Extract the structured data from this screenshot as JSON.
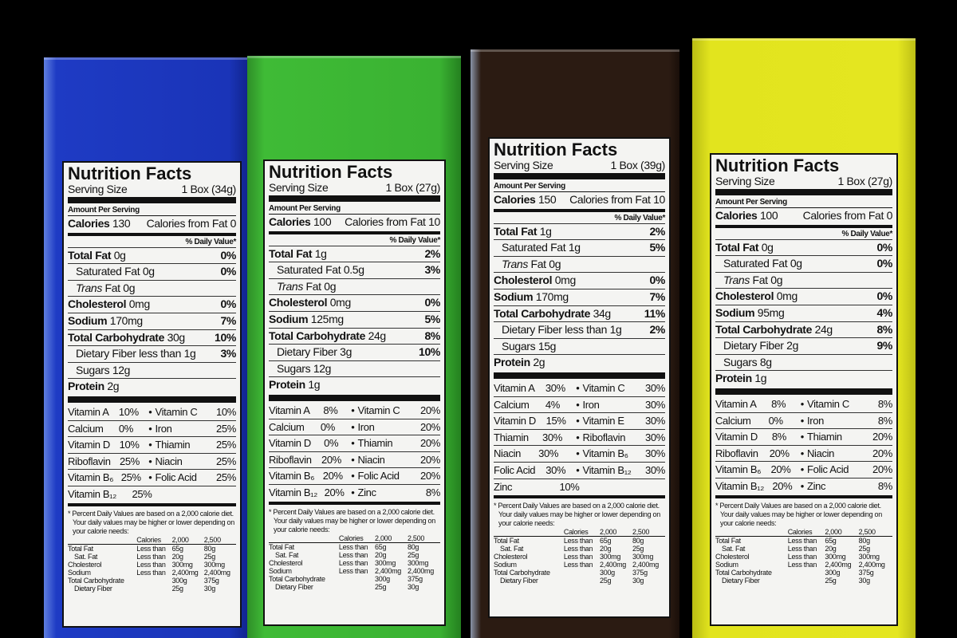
{
  "colors": {
    "background": "#000000",
    "box1": "#1f3cc4",
    "box2": "#3cb534",
    "box3": "#2b1b12",
    "box4": "#e2e41e"
  },
  "common": {
    "title": "Nutrition Facts",
    "serving_label": "Serving Size",
    "amount_per_serving": "Amount Per Serving",
    "calories_label": "Calories",
    "cff_label": "Calories from Fat",
    "dv_header": "% Daily Value*",
    "footnote1": "* Percent Daily Values are based on a 2,000 calorie diet.",
    "footnote2": "Your daily values may be higher or lower depending on",
    "footnote3": "your calorie needs:",
    "table": {
      "header": [
        "",
        "Calories",
        "2,000",
        "2,500"
      ],
      "rows": [
        [
          "Total Fat",
          "Less than",
          "65g",
          "80g"
        ],
        [
          "Sat. Fat",
          "Less than",
          "20g",
          "25g"
        ],
        [
          "Cholesterol",
          "Less than",
          "300mg",
          "300mg"
        ],
        [
          "Sodium",
          "Less than",
          "2,400mg",
          "2,400mg"
        ],
        [
          "Total Carbohydrate",
          "",
          "300g",
          "375g"
        ],
        [
          "Dietary Fiber",
          "",
          "25g",
          "30g"
        ]
      ]
    }
  },
  "labels": [
    {
      "serving": "1 Box (34g)",
      "calories": "130",
      "cff": "0",
      "nutrients": [
        {
          "name": "Total Fat",
          "amount": "0g",
          "dv": "0%",
          "bold": true
        },
        {
          "name": "Saturated Fat",
          "amount": "0g",
          "dv": "0%",
          "indent": true
        },
        {
          "name": "Trans",
          "amount": "Fat 0g",
          "dv": "",
          "indent": true,
          "italic": true
        },
        {
          "name": "Cholesterol",
          "amount": "0mg",
          "dv": "0%",
          "bold": true
        },
        {
          "name": "Sodium",
          "amount": "170mg",
          "dv": "7%",
          "bold": true
        },
        {
          "name": "Total Carbohydrate",
          "amount": "30g",
          "dv": "10%",
          "bold": true
        },
        {
          "name": "Dietary Fiber",
          "amount": "less than 1g",
          "dv": "3%",
          "indent": true
        },
        {
          "name": "Sugars",
          "amount": "12g",
          "dv": "",
          "indent": true
        },
        {
          "name": "Protein",
          "amount": "2g",
          "dv": "",
          "bold": true
        }
      ],
      "vitamins": [
        [
          "Vitamin A",
          "10%",
          "Vitamin C",
          "10%"
        ],
        [
          "Calcium",
          "0%",
          "Iron",
          "25%"
        ],
        [
          "Vitamin D",
          "10%",
          "Thiamin",
          "25%"
        ],
        [
          "Riboflavin",
          "25%",
          "Niacin",
          "25%"
        ],
        [
          "Vitamin B₆",
          "25%",
          "Folic Acid",
          "25%"
        ],
        [
          "Vitamin B₁₂",
          "25%",
          "",
          ""
        ]
      ]
    },
    {
      "serving": "1 Box (27g)",
      "calories": "100",
      "cff": "10",
      "nutrients": [
        {
          "name": "Total Fat",
          "amount": "1g",
          "dv": "2%",
          "bold": true
        },
        {
          "name": "Saturated Fat",
          "amount": "0.5g",
          "dv": "3%",
          "indent": true
        },
        {
          "name": "Trans",
          "amount": "Fat 0g",
          "dv": "",
          "indent": true,
          "italic": true
        },
        {
          "name": "Cholesterol",
          "amount": "0mg",
          "dv": "0%",
          "bold": true
        },
        {
          "name": "Sodium",
          "amount": "125mg",
          "dv": "5%",
          "bold": true
        },
        {
          "name": "Total Carbohydrate",
          "amount": "24g",
          "dv": "8%",
          "bold": true
        },
        {
          "name": "Dietary Fiber",
          "amount": "3g",
          "dv": "10%",
          "indent": true
        },
        {
          "name": "Sugars",
          "amount": "12g",
          "dv": "",
          "indent": true
        },
        {
          "name": "Protein",
          "amount": "1g",
          "dv": "",
          "bold": true
        }
      ],
      "vitamins": [
        [
          "Vitamin A",
          "8%",
          "Vitamin C",
          "20%"
        ],
        [
          "Calcium",
          "0%",
          "Iron",
          "20%"
        ],
        [
          "Vitamin D",
          "0%",
          "Thiamin",
          "20%"
        ],
        [
          "Riboflavin",
          "20%",
          "Niacin",
          "20%"
        ],
        [
          "Vitamin B₆",
          "20%",
          "Folic Acid",
          "20%"
        ],
        [
          "Vitamin B₁₂",
          "20%",
          "Zinc",
          "8%"
        ]
      ]
    },
    {
      "serving": "1 Box (39g)",
      "calories": "150",
      "cff": "10",
      "nutrients": [
        {
          "name": "Total Fat",
          "amount": "1g",
          "dv": "2%",
          "bold": true
        },
        {
          "name": "Saturated Fat",
          "amount": "1g",
          "dv": "5%",
          "indent": true
        },
        {
          "name": "Trans",
          "amount": "Fat 0g",
          "dv": "",
          "indent": true,
          "italic": true
        },
        {
          "name": "Cholesterol",
          "amount": "0mg",
          "dv": "0%",
          "bold": true
        },
        {
          "name": "Sodium",
          "amount": "170mg",
          "dv": "7%",
          "bold": true
        },
        {
          "name": "Total Carbohydrate",
          "amount": "34g",
          "dv": "11%",
          "bold": true
        },
        {
          "name": "Dietary Fiber",
          "amount": "less than 1g",
          "dv": "2%",
          "indent": true
        },
        {
          "name": "Sugars",
          "amount": "15g",
          "dv": "",
          "indent": true
        },
        {
          "name": "Protein",
          "amount": "2g",
          "dv": "",
          "bold": true
        }
      ],
      "vitamins": [
        [
          "Vitamin A",
          "30%",
          "Vitamin C",
          "30%"
        ],
        [
          "Calcium",
          "4%",
          "Iron",
          "30%"
        ],
        [
          "Vitamin D",
          "15%",
          "Vitamin E",
          "30%"
        ],
        [
          "Thiamin",
          "30%",
          "Riboflavin",
          "30%"
        ],
        [
          "Niacin",
          "30%",
          "Vitamin B₆",
          "30%"
        ],
        [
          "Folic Acid",
          "30%",
          "Vitamin B₁₂",
          "30%"
        ],
        [
          "Zinc",
          "10%",
          "",
          ""
        ]
      ]
    },
    {
      "serving": "1 Box (27g)",
      "calories": "100",
      "cff": "0",
      "nutrients": [
        {
          "name": "Total Fat",
          "amount": "0g",
          "dv": "0%",
          "bold": true
        },
        {
          "name": "Saturated Fat",
          "amount": "0g",
          "dv": "0%",
          "indent": true
        },
        {
          "name": "Trans",
          "amount": "Fat 0g",
          "dv": "",
          "indent": true,
          "italic": true
        },
        {
          "name": "Cholesterol",
          "amount": "0mg",
          "dv": "0%",
          "bold": true
        },
        {
          "name": "Sodium",
          "amount": "95mg",
          "dv": "4%",
          "bold": true
        },
        {
          "name": "Total Carbohydrate",
          "amount": "24g",
          "dv": "8%",
          "bold": true
        },
        {
          "name": "Dietary Fiber",
          "amount": "2g",
          "dv": "9%",
          "indent": true
        },
        {
          "name": "Sugars",
          "amount": "8g",
          "dv": "",
          "indent": true
        },
        {
          "name": "Protein",
          "amount": "1g",
          "dv": "",
          "bold": true
        }
      ],
      "vitamins": [
        [
          "Vitamin A",
          "8%",
          "Vitamin C",
          "8%"
        ],
        [
          "Calcium",
          "0%",
          "Iron",
          "8%"
        ],
        [
          "Vitamin D",
          "8%",
          "Thiamin",
          "20%"
        ],
        [
          "Riboflavin",
          "20%",
          "Niacin",
          "20%"
        ],
        [
          "Vitamin B₆",
          "20%",
          "Folic Acid",
          "20%"
        ],
        [
          "Vitamin B₁₂",
          "20%",
          "Zinc",
          "8%"
        ]
      ]
    }
  ]
}
